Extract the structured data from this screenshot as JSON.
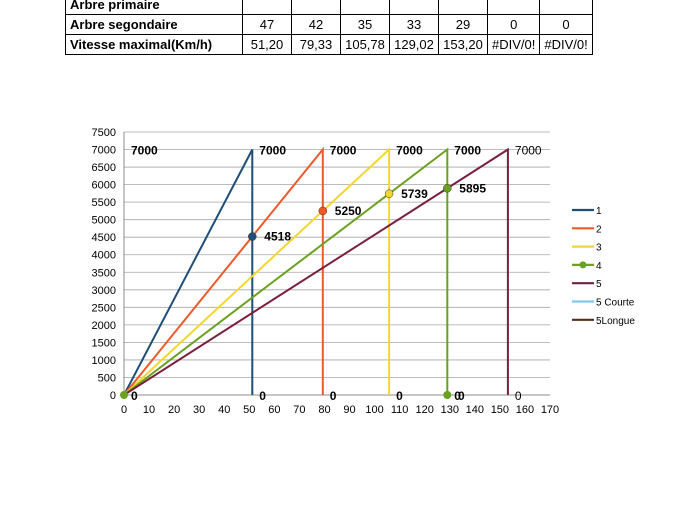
{
  "table": {
    "rows": [
      {
        "label": "Arbre primaire",
        "values": [
          "",
          "",
          "",
          "",
          "",
          "",
          ""
        ]
      },
      {
        "label": "Arbre segondaire",
        "values": [
          "47",
          "42",
          "35",
          "33",
          "29",
          "0",
          "0"
        ]
      },
      {
        "label": "Vitesse maximal(Km/h)",
        "values": [
          "51,20",
          "79,33",
          "105,78",
          "129,02",
          "153,20",
          "#DIV/0!",
          "#DIV/0!"
        ]
      }
    ]
  },
  "chart_data": {
    "type": "line",
    "title": "",
    "xlabel": "",
    "ylabel": "",
    "xlim": [
      0,
      170
    ],
    "ylim": [
      0,
      7500
    ],
    "x_ticks": [
      0,
      10,
      20,
      30,
      40,
      50,
      60,
      70,
      80,
      90,
      100,
      110,
      120,
      130,
      140,
      150,
      160,
      170
    ],
    "y_ticks": [
      0,
      500,
      1000,
      1500,
      2000,
      2500,
      3000,
      3500,
      4000,
      4500,
      5000,
      5500,
      6000,
      6500,
      7000,
      7500
    ],
    "grid": {
      "horizontal": true,
      "vertical": false
    },
    "legend_position": "right",
    "series": [
      {
        "name": "1",
        "color": "#1f4e79",
        "marker": "none",
        "points": [
          [
            0,
            0
          ],
          [
            51.2,
            7000
          ],
          [
            51.2,
            0
          ]
        ]
      },
      {
        "name": "2",
        "color": "#ed5a2a",
        "marker": "none",
        "points": [
          [
            0,
            0
          ],
          [
            79.33,
            7000
          ],
          [
            79.33,
            0
          ]
        ]
      },
      {
        "name": "3",
        "color": "#f5d62e",
        "marker": "none",
        "points": [
          [
            0,
            0
          ],
          [
            105.78,
            7000
          ],
          [
            105.78,
            0
          ]
        ]
      },
      {
        "name": "4",
        "color": "#6aa121",
        "marker": "circle",
        "points": [
          [
            0,
            0
          ],
          [
            129.02,
            7000
          ],
          [
            129.02,
            0
          ]
        ]
      },
      {
        "name": "5",
        "color": "#7a1f3d",
        "marker": "none",
        "points": [
          [
            0,
            0
          ],
          [
            153.2,
            7000
          ],
          [
            153.2,
            0
          ]
        ]
      },
      {
        "name": "5 Courte",
        "color": "#7ec8f2",
        "marker": "none",
        "points": []
      },
      {
        "name": "5Longue",
        "color": "#5a2d1a",
        "marker": "none",
        "points": []
      }
    ],
    "shift_points": [
      {
        "x": 51.2,
        "y": 4518,
        "label": "4518",
        "color": "#1f4e79"
      },
      {
        "x": 79.33,
        "y": 5250,
        "label": "5250",
        "color": "#ed5a2a"
      },
      {
        "x": 105.78,
        "y": 5739,
        "label": "5739",
        "color": "#f5d62e"
      },
      {
        "x": 129.02,
        "y": 5895,
        "label": "5895",
        "color": "#6aa121"
      }
    ],
    "data_labels": [
      {
        "x": 0,
        "y": 7000,
        "text": "7000",
        "bold": true
      },
      {
        "x": 51.2,
        "y": 7000,
        "text": "7000",
        "bold": true
      },
      {
        "x": 79.33,
        "y": 7000,
        "text": "7000",
        "bold": true
      },
      {
        "x": 105.78,
        "y": 7000,
        "text": "7000",
        "bold": true
      },
      {
        "x": 129.02,
        "y": 7000,
        "text": "7000",
        "bold": true
      },
      {
        "x": 153.2,
        "y": 7000,
        "text": "7000",
        "bold": false
      },
      {
        "x": 0,
        "y": 0,
        "text": "0",
        "bold": true
      },
      {
        "x": 51.2,
        "y": 0,
        "text": "0",
        "bold": true
      },
      {
        "x": 79.33,
        "y": 0,
        "text": "0",
        "bold": true
      },
      {
        "x": 105.78,
        "y": 0,
        "text": "0",
        "bold": true
      },
      {
        "x": 129.02,
        "y": 0,
        "text": "0",
        "bold": true
      },
      {
        "x": 130.5,
        "y": 0,
        "text": "0",
        "bold": true
      },
      {
        "x": 153.2,
        "y": 0,
        "text": "0",
        "bold": false
      }
    ]
  }
}
